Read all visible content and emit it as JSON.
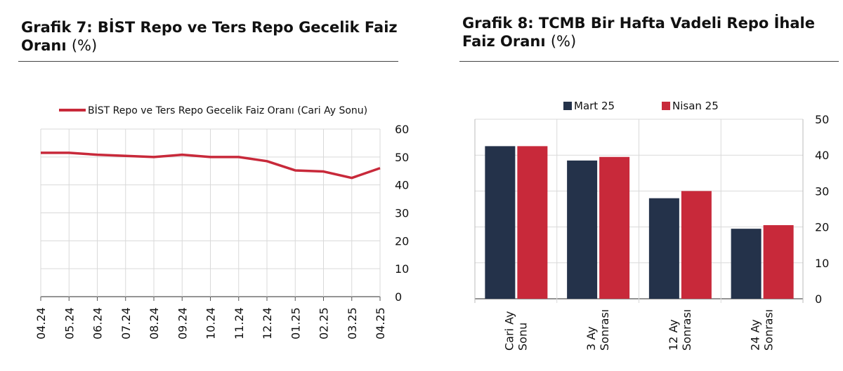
{
  "charts": [
    {
      "id": "grafik7",
      "title": "Grafik 7:  BİST Repo ve Ters Repo Gecelik Faiz",
      "title_line2": "Oranı",
      "title_unit": "(%)",
      "chart_data": {
        "type": "line",
        "categories": [
          "04.24",
          "05.24",
          "06.24",
          "07.24",
          "08.24",
          "09.24",
          "10.24",
          "11.24",
          "12.24",
          "01.25",
          "02.25",
          "03.25",
          "04.25"
        ],
        "series": [
          {
            "name": "BİST Repo ve Ters Repo Gecelik Faiz Oranı (Cari Ay Sonu)",
            "color": "#c8293a",
            "values": [
              51.5,
              51.5,
              50.8,
              50.4,
              50.0,
              50.8,
              50.0,
              50.0,
              48.5,
              45.2,
              44.8,
              42.5,
              46.0
            ]
          }
        ],
        "yticks": [
          "0",
          "10",
          "20",
          "30",
          "40",
          "50",
          "60"
        ],
        "ylim": [
          0,
          60
        ],
        "grid": true,
        "legend": "top"
      }
    },
    {
      "id": "grafik8",
      "title": "Grafik 8: TCMB Bir Hafta Vadeli Repo İhale",
      "title_line2": "Faiz Oranı",
      "title_unit": "(%)",
      "chart_data": {
        "type": "bar",
        "categories": [
          {
            "line1": "Cari Ay",
            "line2": "Sonu"
          },
          {
            "line1": "3 Ay",
            "line2": "Sonrası"
          },
          {
            "line1": "12 Ay",
            "line2": "Sonrası"
          },
          {
            "line1": "24 Ay",
            "line2": "Sonrası"
          }
        ],
        "series": [
          {
            "name": "Mart 25",
            "color": "#24324a",
            "values": [
              42.5,
              38.5,
              28.0,
              19.5
            ]
          },
          {
            "name": "Nisan 25",
            "color": "#c8293a",
            "values": [
              42.5,
              39.5,
              30.0,
              20.5
            ]
          }
        ],
        "yticks": [
          "0",
          "10",
          "20",
          "30",
          "40",
          "50"
        ],
        "ylim": [
          0,
          50
        ],
        "grid": true,
        "legend": "top"
      }
    }
  ]
}
